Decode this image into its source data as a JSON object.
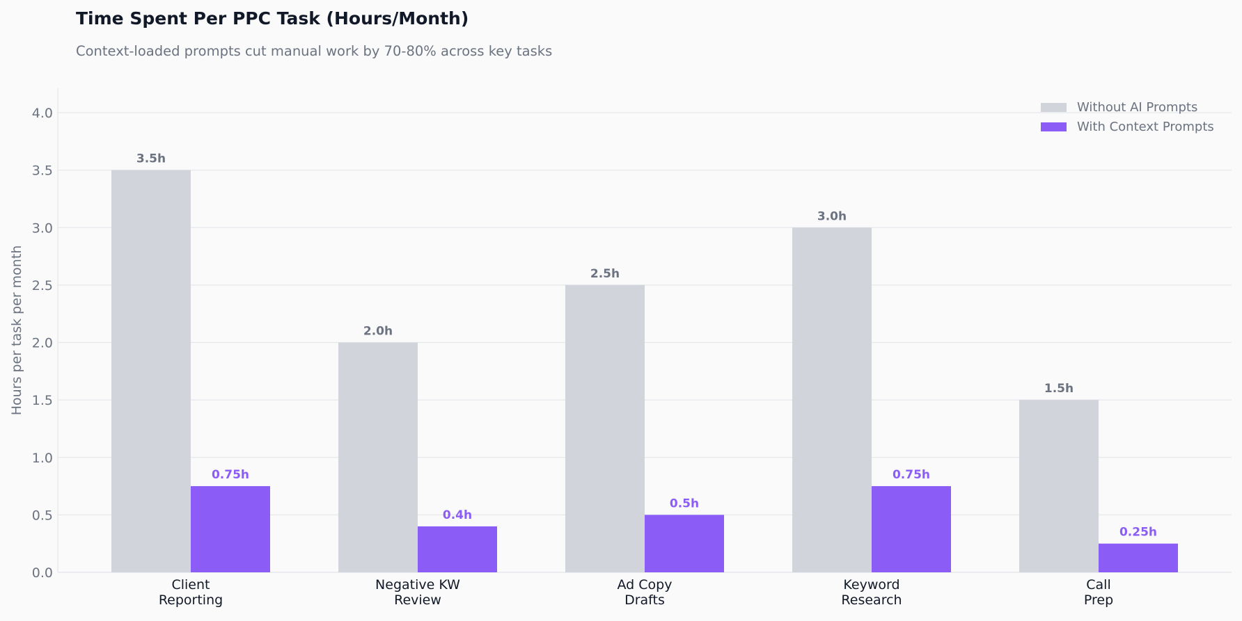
{
  "chart_data": {
    "type": "bar",
    "title": "Time Spent Per PPC Task (Hours/Month)",
    "subtitle": "Context-loaded prompts cut manual work by 70-80% across key tasks",
    "xlabel": "",
    "ylabel": "Hours per task per month",
    "ylim": [
      0,
      4.2
    ],
    "yticks": [
      "0.0",
      "0.5",
      "1.0",
      "1.5",
      "2.0",
      "2.5",
      "3.0",
      "3.5",
      "4.0"
    ],
    "grid": true,
    "legend_position": "top-right",
    "categories": [
      [
        "Client",
        "Reporting"
      ],
      [
        "Negative KW",
        "Review"
      ],
      [
        "Ad Copy",
        "Drafts"
      ],
      [
        "Keyword",
        "Research"
      ],
      [
        "Call",
        "Prep"
      ]
    ],
    "series": [
      {
        "name": "Without AI Prompts",
        "color": "#d1d5db",
        "label_color": "#6b7280",
        "values": [
          3.5,
          2.0,
          2.5,
          3.0,
          1.5
        ],
        "labels": [
          "3.5h",
          "2.0h",
          "2.5h",
          "3.0h",
          "1.5h"
        ]
      },
      {
        "name": "With Context Prompts",
        "color": "#8b5cf6",
        "label_color": "#8b5cf6",
        "values": [
          0.75,
          0.4,
          0.5,
          0.75,
          0.25
        ],
        "labels": [
          "0.75h",
          "0.4h",
          "0.5h",
          "0.75h",
          "0.25h"
        ]
      }
    ]
  }
}
